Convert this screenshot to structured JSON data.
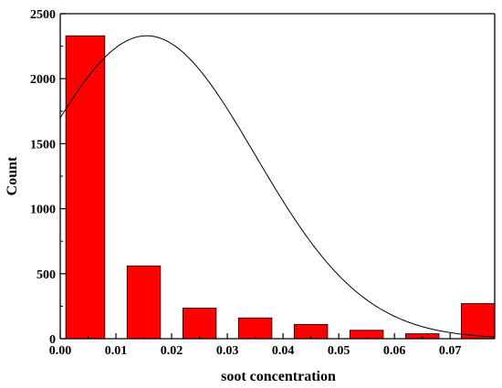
{
  "chart_data": {
    "type": "bar",
    "title": "",
    "xlabel": "soot concentration",
    "ylabel": "Count",
    "xlim": [
      0.0,
      0.078
    ],
    "ylim": [
      0,
      2500
    ],
    "x_ticks": [
      0.0,
      0.01,
      0.02,
      0.03,
      0.04,
      0.05,
      0.06,
      0.07
    ],
    "x_tick_labels": [
      "0.00",
      "0.01",
      "0.02",
      "0.03",
      "0.04",
      "0.05",
      "0.06",
      "0.07"
    ],
    "y_ticks": [
      0,
      500,
      1000,
      1500,
      2000,
      2500
    ],
    "y_tick_labels": [
      "0",
      "500",
      "1000",
      "1500",
      "2000",
      "2500"
    ],
    "bin_width": 0.01,
    "bars": [
      {
        "x_start": 0.001,
        "x_end": 0.008,
        "count": 2330
      },
      {
        "x_start": 0.012,
        "x_end": 0.018,
        "count": 560
      },
      {
        "x_start": 0.022,
        "x_end": 0.028,
        "count": 235
      },
      {
        "x_start": 0.032,
        "x_end": 0.038,
        "count": 160
      },
      {
        "x_start": 0.042,
        "x_end": 0.048,
        "count": 110
      },
      {
        "x_start": 0.052,
        "x_end": 0.058,
        "count": 65
      },
      {
        "x_start": 0.062,
        "x_end": 0.068,
        "count": 38
      },
      {
        "x_start": 0.072,
        "x_end": 0.078,
        "count": 270
      }
    ],
    "fit_curve": {
      "type": "gaussian",
      "peak_x": 0.0155,
      "peak_y": 2330,
      "sigma": 0.0195,
      "x_start": 0.0,
      "x_end": 0.078
    },
    "grid": false,
    "legend": "none",
    "colors": {
      "bar_fill": "#ff0000",
      "bar_stroke": "#000000",
      "curve": "#000000",
      "axis": "#000000"
    }
  }
}
